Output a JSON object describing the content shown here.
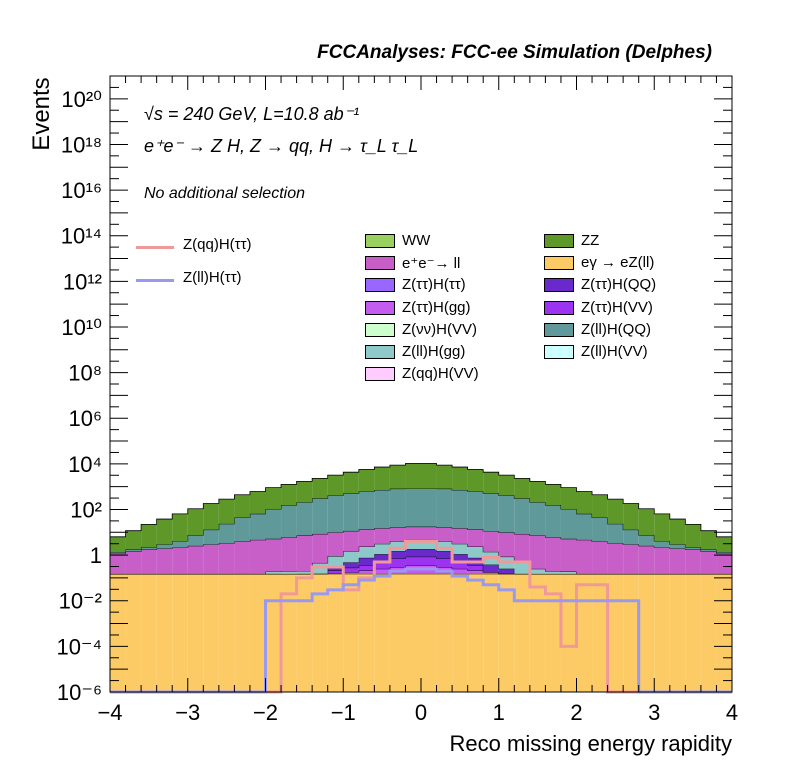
{
  "header": {
    "title": "FCCAnalyses: FCC-ee Simulation (Delphes)"
  },
  "annotations": {
    "line1": "√s = 240 GeV, L=10.8 ab⁻¹",
    "line2": "e⁺e⁻ → Z H, Z → qq, H → τ_L τ_L",
    "line3": "No additional selection"
  },
  "chart_data": {
    "type": "area",
    "title": "FCCAnalyses: FCC-ee Simulation (Delphes)",
    "xlabel": "Reco missing energy rapidity",
    "ylabel": "Events",
    "xlim": [
      -4,
      4
    ],
    "ylim": [
      1e-06,
      1e+21
    ],
    "yscale": "log",
    "x_ticks": [
      "−4",
      "−3",
      "−2",
      "−1",
      "0",
      "1",
      "2",
      "3",
      "4"
    ],
    "y_ticks": [
      "10⁻⁶",
      "10⁻⁴",
      "10⁻²",
      "1",
      "10²",
      "10⁴",
      "10⁶",
      "10⁸",
      "10¹⁰",
      "10¹²",
      "10¹⁴",
      "10¹⁶",
      "10¹⁸",
      "10²⁰"
    ],
    "bin_width": 0.2,
    "stack_order_bottom_to_top": [
      "eγ → eZ(ll)",
      "Z(ττ)H(gg)",
      "Z(ττ)H(VV)",
      "Z(ττ)H(QQ)",
      "Z(ll)H(gg)",
      "e⁺e⁻→ ll",
      "Z(ll)H(QQ)",
      "ZZ"
    ],
    "stacked_series": [
      {
        "name": "eγ → eZ(ll)",
        "color": "#fdcb66",
        "values": [
          0.15,
          0.15,
          0.15,
          0.15,
          0.15,
          0.15,
          0.15,
          0.15,
          0.15,
          0.15,
          0.15,
          0.15,
          0.15,
          0.15,
          0.15,
          0.15,
          0.15,
          0.15,
          0.15,
          0.15,
          0.15,
          0.15,
          0.15,
          0.15,
          0.15,
          0.15,
          0.15,
          0.15,
          0.15,
          0.15,
          0.15,
          0.15,
          0.15,
          0.15,
          0.15,
          0.15,
          0.15,
          0.15,
          0.15,
          0.15
        ]
      },
      {
        "name": "Z(ττ)H(gg)",
        "color": "#c45cf0",
        "values": [
          0,
          0,
          0,
          0,
          0,
          0,
          0,
          0,
          0.0001,
          0,
          0.001,
          1e-05,
          0.001,
          0.003,
          0.01,
          0.03,
          0.06,
          0.1,
          0.15,
          0.2,
          0.2,
          0.15,
          0.1,
          0.06,
          0.03,
          0.001,
          0,
          0,
          0,
          0,
          0,
          0,
          0,
          0,
          0,
          0,
          0,
          0,
          0,
          0
        ]
      },
      {
        "name": "Z(ττ)H(VV)",
        "color": "#9b33f0",
        "values": [
          0,
          0,
          0,
          0,
          0,
          0,
          0,
          0,
          0,
          0,
          0,
          0,
          0,
          0,
          0.05,
          0.1,
          0.15,
          0.25,
          0.4,
          0.5,
          0.5,
          0.4,
          0.25,
          0.15,
          0.002,
          0.002,
          0.001,
          0,
          0,
          0,
          0,
          0,
          0,
          0,
          0,
          0,
          0,
          0,
          0,
          0
        ]
      },
      {
        "name": "Z(ττ)H(QQ)",
        "color": "#6a2acb",
        "values": [
          0,
          0,
          0,
          0,
          0,
          0,
          0,
          0,
          0,
          0,
          0,
          0,
          0,
          0,
          0.1,
          0.2,
          0.4,
          0.6,
          0.8,
          1.0,
          1.0,
          0.8,
          0.6,
          0.4,
          0.2,
          0.1,
          0,
          0,
          0,
          0,
          0,
          0,
          0,
          0,
          0,
          0,
          0,
          0,
          0,
          0
        ]
      },
      {
        "name": "Z(ll)H(gg)",
        "color": "#8ec9c9",
        "values": [
          0,
          0,
          0,
          0,
          0,
          0,
          0,
          0,
          0,
          0,
          0.04,
          0.05,
          0.05,
          0.3,
          0.6,
          1.0,
          1.6,
          2.0,
          2.5,
          2.8,
          2.8,
          2.5,
          2.0,
          1.6,
          1.0,
          0.6,
          0.3,
          0.1,
          0.05,
          0.04,
          0,
          0,
          0,
          0,
          0,
          0,
          0,
          0,
          0,
          0
        ]
      },
      {
        "name": "e⁺e⁻→ ll",
        "color": "#c85ec8",
        "values": [
          1.0,
          1.3,
          1.6,
          1.8,
          2.0,
          2.4,
          2.8,
          3.2,
          3.8,
          4.5,
          5.0,
          5.8,
          7.0,
          8.0,
          9.0,
          10.0,
          11.0,
          12.0,
          12.5,
          13.0,
          13.0,
          12.5,
          12.0,
          11.0,
          10.0,
          9.0,
          8.0,
          7.0,
          5.8,
          5.0,
          4.5,
          3.8,
          3.2,
          2.8,
          2.4,
          2.0,
          1.8,
          1.6,
          1.3,
          1.0
        ]
      },
      {
        "name": "Z(ll)H(QQ)",
        "color": "#5f9999",
        "values": [
          0.2,
          0.3,
          0.5,
          1,
          2,
          5,
          10,
          20,
          40,
          60,
          100,
          150,
          200,
          300,
          400,
          500,
          600,
          700,
          800,
          800,
          800,
          800,
          700,
          600,
          500,
          400,
          300,
          200,
          150,
          100,
          60,
          40,
          20,
          10,
          5,
          2,
          1,
          0.5,
          0.3,
          0.2
        ]
      },
      {
        "name": "ZZ",
        "color": "#5e9828",
        "values": [
          5,
          10,
          20,
          35,
          60,
          100,
          170,
          260,
          400,
          550,
          800,
          1100,
          1500,
          2000,
          2800,
          3800,
          5000,
          6500,
          8000,
          9500,
          9500,
          8000,
          6500,
          5000,
          3800,
          2800,
          2000,
          1500,
          1100,
          800,
          550,
          400,
          260,
          170,
          100,
          60,
          35,
          20,
          10,
          5
        ]
      }
    ],
    "line_series": [
      {
        "name": "Z(qq)H(ττ)",
        "color": "#f09999",
        "values": [
          0,
          0,
          0,
          0,
          0,
          0,
          0,
          0,
          0,
          0,
          0,
          0.02,
          0.1,
          0.3,
          0.3,
          0.03,
          0.1,
          0.5,
          2.0,
          4.0,
          4.0,
          2.0,
          0.5,
          0.5,
          0.8,
          0.5,
          0.5,
          0.04,
          0.02,
          0.0001,
          0.05,
          0.05,
          0,
          0,
          0,
          0,
          0,
          0,
          0,
          0
        ]
      },
      {
        "name": "Z(ll)H(ττ)",
        "color": "#9999f0",
        "values": [
          0,
          0,
          0,
          0,
          0,
          0,
          0,
          0,
          0,
          0,
          0.01,
          0.01,
          0.01,
          0.02,
          0.03,
          0.05,
          0.08,
          0.12,
          0.2,
          0.25,
          0.25,
          0.2,
          0.12,
          0.08,
          0.05,
          0.03,
          0.01,
          0.01,
          0.01,
          0.01,
          0.01,
          0.01,
          0.01,
          0.01,
          0,
          0,
          0,
          0,
          0,
          0
        ]
      }
    ],
    "legend": {
      "line_entries": [
        "Z(qq)H(ττ)",
        "Z(ll)H(ττ)"
      ],
      "column1": [
        {
          "name": "WW",
          "color": "#9ad060"
        },
        {
          "name": "e⁺e⁻→ ll",
          "color": "#c85ec8"
        },
        {
          "name": "Z(ττ)H(ττ)",
          "color": "#9966ff"
        },
        {
          "name": "Z(ττ)H(gg)",
          "color": "#c45cf0"
        },
        {
          "name": "Z(νν)H(VV)",
          "color": "#ccffcc"
        },
        {
          "name": "Z(ll)H(gg)",
          "color": "#8ec9c9"
        },
        {
          "name": "Z(qq)H(VV)",
          "color": "#ffccff"
        }
      ],
      "column2": [
        {
          "name": "ZZ",
          "color": "#5e9828"
        },
        {
          "name": "eγ → eZ(ll)",
          "color": "#fdcb66"
        },
        {
          "name": "Z(ττ)H(QQ)",
          "color": "#6a2acb"
        },
        {
          "name": "Z(ττ)H(VV)",
          "color": "#9b33f0"
        },
        {
          "name": "Z(ll)H(QQ)",
          "color": "#5f9999"
        },
        {
          "name": "Z(ll)H(VV)",
          "color": "#ccffff"
        }
      ]
    }
  }
}
